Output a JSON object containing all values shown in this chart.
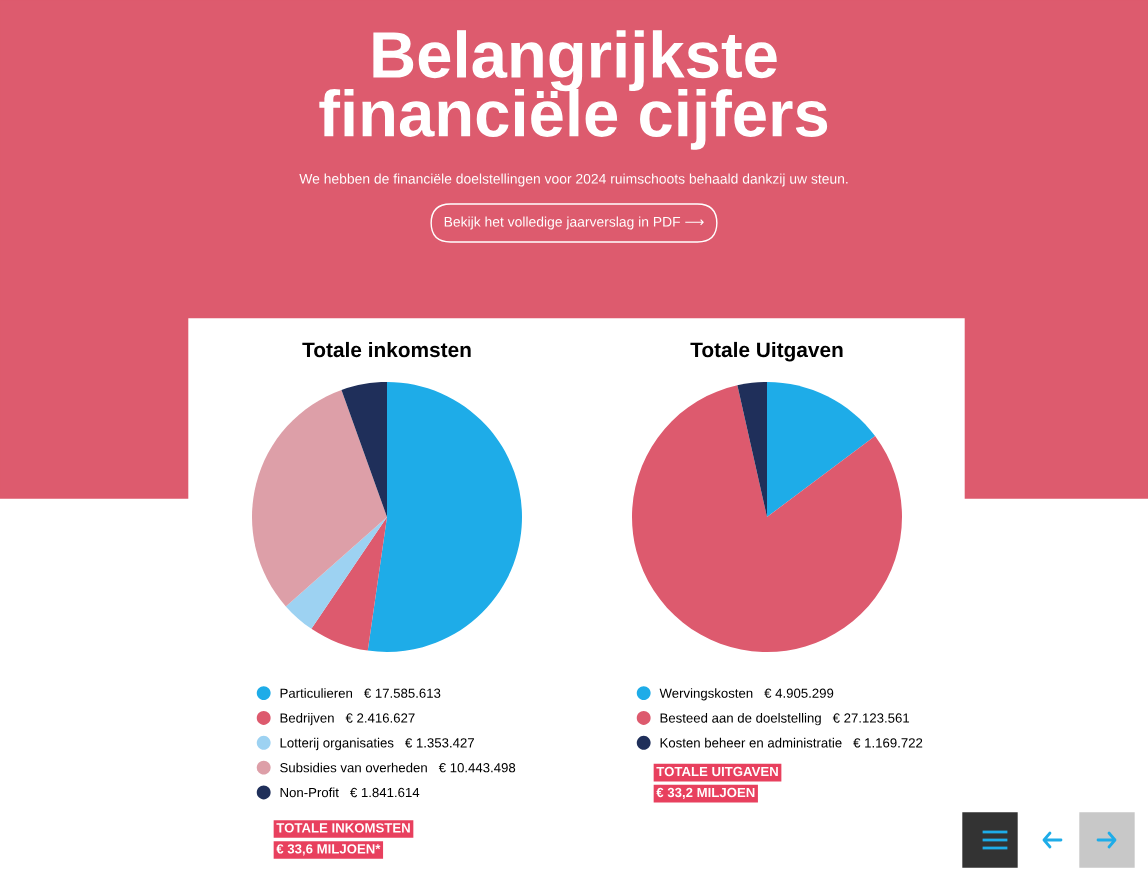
{
  "chart_data": [
    {
      "type": "other",
      "title": "Belangrijkste\nfinanciële cijfers",
      "subtitle": "We hebben de financiële doelstellingen voor 2024 ruimschoots behaald dankzij uw steun.",
      "annotations": [
        "Bekijk het volledige jaarverslag in PDF ⟶"
      ]
    },
    {
      "type": "pie",
      "title": "Totale inkomsten",
      "categories": [
        "Particulieren",
        "Bedrijven",
        "Lotterij organisaties",
        "Subsidies van overheden",
        "Non-Profit"
      ],
      "values": [
        17585613,
        2416627,
        1353427,
        10443498,
        1841614
      ],
      "colors": [
        "#1eace8",
        "#dd5a6e",
        "#9dd2f2",
        "#dd9fa8",
        "#1f2f5a"
      ],
      "value_labels": [
        "€ 17.585.613",
        "€ 2.416.627",
        "€ 1.353.427",
        "€ 10.443.498",
        "€ 1.841.614"
      ],
      "legend": "bottom",
      "annotations": [
        "TOTALE INKOMSTEN",
        "€ 33,6 MILJOEN*"
      ]
    },
    {
      "type": "pie",
      "title": "Totale Uitgaven",
      "categories": [
        "Wervingskosten",
        "Besteed aan de doelstelling",
        "Kosten beheer en administratie"
      ],
      "values": [
        4905299,
        27123561,
        1169722
      ],
      "colors": [
        "#1eace8",
        "#dd5a6e",
        "#1f2f5a"
      ],
      "value_labels": [
        "€ 4.905.299",
        "€ 27.123.561",
        "€ 1.169.722"
      ],
      "legend": "bottom",
      "annotations": [
        "TOTALE UITGAVEN",
        "€ 33,2 MILJOEN"
      ]
    }
  ]
}
